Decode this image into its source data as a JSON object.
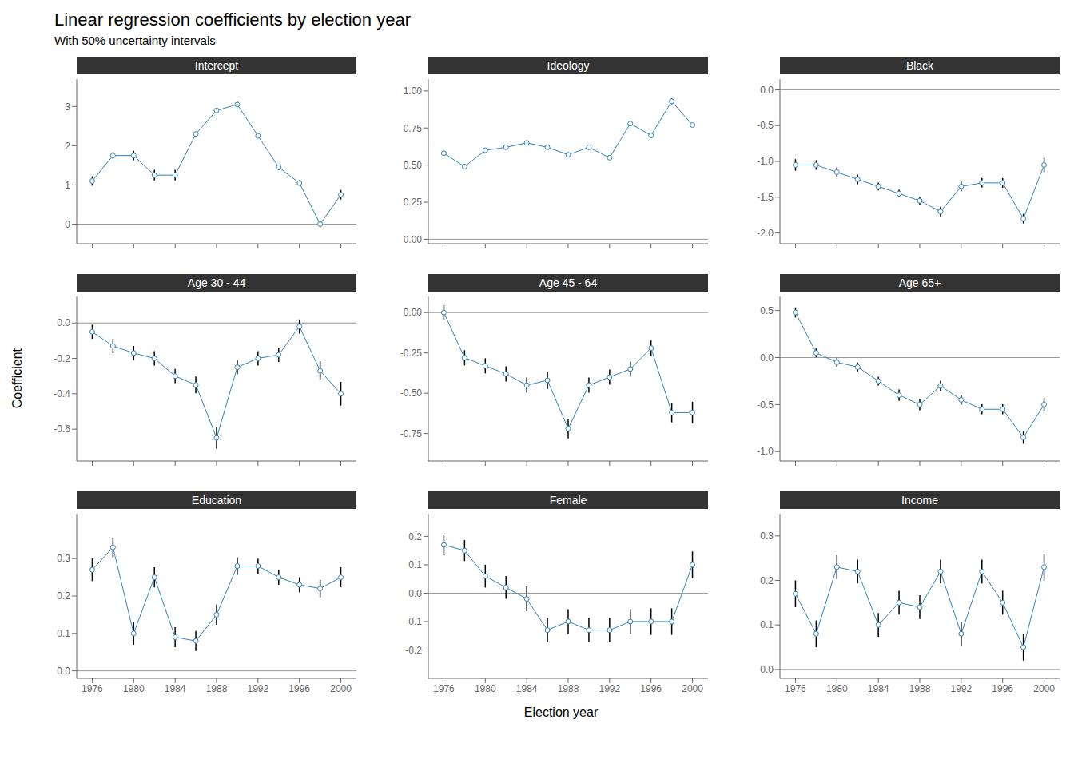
{
  "chart_data": {
    "type": "line",
    "title": "Linear regression coefficients by election year",
    "subtitle": "With 50% uncertainty intervals",
    "xlabel": "Election year",
    "ylabel": "Coefficient",
    "x": [
      1976,
      1978,
      1980,
      1982,
      1984,
      1986,
      1988,
      1990,
      1992,
      1994,
      1996,
      1998,
      2000
    ],
    "xlim": [
      1974.5,
      2001.5
    ],
    "xticks": [
      1976,
      1980,
      1984,
      1988,
      1992,
      1996,
      2000
    ],
    "reference_line": 0,
    "subplots": [
      {
        "title": "Intercept",
        "values": [
          1.1,
          1.75,
          1.75,
          1.25,
          1.25,
          2.3,
          2.9,
          3.05,
          2.25,
          1.45,
          1.05,
          0.0,
          0.75
        ],
        "errors": [
          0.1206,
          0.0804,
          0.1206,
          0.134,
          0.134,
          0.0536,
          0.0536,
          0.067,
          0.0536,
          0.067,
          0.067,
          0.0804,
          0.1206
        ],
        "ylim": [
          -0.5,
          3.7
        ],
        "yticks": [
          0,
          1,
          2,
          3
        ],
        "tick_labels": "y"
      },
      {
        "title": "Ideology",
        "values": [
          0.58,
          0.49,
          0.6,
          0.62,
          0.65,
          0.62,
          0.57,
          0.62,
          0.55,
          0.78,
          0.7,
          0.93,
          0.77
        ],
        "errors": [
          0.01675,
          0.01675,
          0.01675,
          0.0134,
          0.0134,
          0.0134,
          0.0134,
          0.0134,
          0.0134,
          0.01675,
          0.0134,
          0.0201,
          0.0134
        ],
        "ylim": [
          -0.03,
          1.08
        ],
        "yticks": [
          {
            "value": 0.0,
            "label": "0.00"
          },
          0.25,
          {
            "value": 0.5,
            "label": "0.50"
          },
          0.75,
          {
            "value": 1.0,
            "label": "1.00"
          }
        ],
        "tick_labels": "y"
      },
      {
        "title": "Black",
        "values": [
          -1.05,
          -1.05,
          -1.15,
          -1.25,
          -1.35,
          -1.45,
          -1.55,
          -1.7,
          -1.35,
          -1.3,
          -1.3,
          -1.8,
          -1.05
        ],
        "errors": [
          0.0804,
          0.067,
          0.067,
          0.067,
          0.0536,
          0.0536,
          0.0536,
          0.067,
          0.067,
          0.067,
          0.067,
          0.067,
          0.1005
        ],
        "ylim": [
          -2.15,
          0.15
        ],
        "yticks": [
          {
            "value": 0.0,
            "label": "0.0"
          },
          -0.5,
          {
            "value": -1.0,
            "label": "-1.0"
          },
          -1.5,
          {
            "value": -2.0,
            "label": "-2.0"
          }
        ],
        "tick_labels": "y"
      },
      {
        "title": "Age 30 - 44",
        "values": [
          -0.05,
          -0.13,
          -0.17,
          -0.2,
          -0.3,
          -0.35,
          -0.65,
          -0.25,
          -0.2,
          -0.18,
          -0.02,
          -0.27,
          -0.4
        ],
        "errors": [
          0.0402,
          0.0402,
          0.0402,
          0.0402,
          0.0402,
          0.0469,
          0.0603,
          0.0402,
          0.0402,
          0.0402,
          0.0402,
          0.0536,
          0.067
        ],
        "ylim": [
          -0.78,
          0.15
        ],
        "yticks": [
          {
            "value": 0.0,
            "label": "0.0"
          },
          -0.2,
          -0.4,
          -0.6
        ],
        "tick_labels": "y"
      },
      {
        "title": "Age 45 - 64",
        "values": [
          0.0,
          -0.28,
          -0.33,
          -0.38,
          -0.45,
          -0.42,
          -0.72,
          -0.45,
          -0.4,
          -0.35,
          -0.22,
          -0.62,
          -0.62
        ],
        "errors": [
          0.0469,
          0.0469,
          0.0469,
          0.0469,
          0.0469,
          0.0536,
          0.0603,
          0.0469,
          0.0469,
          0.0469,
          0.0469,
          0.0603,
          0.067
        ],
        "ylim": [
          -0.92,
          0.1
        ],
        "yticks": [
          {
            "value": 0.0,
            "label": "0.00"
          },
          -0.25,
          {
            "value": -0.5,
            "label": "-0.50"
          },
          -0.75
        ],
        "tick_labels": "y"
      },
      {
        "title": "Age 65+",
        "values": [
          0.48,
          0.05,
          -0.05,
          -0.1,
          -0.25,
          -0.4,
          -0.5,
          -0.3,
          -0.45,
          -0.55,
          -0.55,
          -0.85,
          -0.5
        ],
        "errors": [
          0.0536,
          0.0469,
          0.0469,
          0.0469,
          0.0469,
          0.0603,
          0.0603,
          0.0536,
          0.0536,
          0.0536,
          0.0536,
          0.067,
          0.067
        ],
        "ylim": [
          -1.1,
          0.65
        ],
        "yticks": [
          0.5,
          {
            "value": 0.0,
            "label": "0.0"
          },
          -0.5,
          {
            "value": -1.0,
            "label": "-1.0"
          }
        ],
        "tick_labels": "y"
      },
      {
        "title": "Education",
        "values": [
          0.27,
          0.33,
          0.1,
          0.25,
          0.09,
          0.08,
          0.15,
          0.28,
          0.28,
          0.25,
          0.23,
          0.22,
          0.25
        ],
        "errors": [
          0.03015,
          0.0268,
          0.03015,
          0.0268,
          0.0268,
          0.0268,
          0.0268,
          0.02345,
          0.0201,
          0.0201,
          0.0201,
          0.02345,
          0.0268
        ],
        "ylim": [
          -0.02,
          0.42
        ],
        "yticks": [
          {
            "value": 0.0,
            "label": "0.0"
          },
          0.1,
          0.2,
          0.3
        ]
      },
      {
        "title": "Female",
        "values": [
          0.17,
          0.15,
          0.06,
          0.02,
          -0.02,
          -0.13,
          -0.1,
          -0.13,
          -0.13,
          -0.1,
          -0.1,
          -0.1,
          0.1
        ],
        "errors": [
          0.03685,
          0.03685,
          0.0402,
          0.0402,
          0.04355,
          0.04355,
          0.04355,
          0.04355,
          0.04355,
          0.04355,
          0.0469,
          0.0469,
          0.0469
        ],
        "ylim": [
          -0.3,
          0.28
        ],
        "yticks": [
          -0.2,
          -0.1,
          {
            "value": 0.0,
            "label": "0.0"
          },
          0.1,
          0.2
        ]
      },
      {
        "title": "Income",
        "values": [
          0.17,
          0.08,
          0.23,
          0.22,
          0.1,
          0.15,
          0.14,
          0.22,
          0.08,
          0.22,
          0.15,
          0.05,
          0.23
        ],
        "errors": [
          0.03015,
          0.03015,
          0.0268,
          0.0268,
          0.0268,
          0.0268,
          0.0268,
          0.0268,
          0.0268,
          0.0268,
          0.0268,
          0.03015,
          0.03015
        ],
        "ylim": [
          -0.02,
          0.35
        ],
        "yticks": [
          {
            "value": 0.0,
            "label": "0.0"
          },
          0.1,
          0.2,
          0.3
        ]
      }
    ]
  }
}
